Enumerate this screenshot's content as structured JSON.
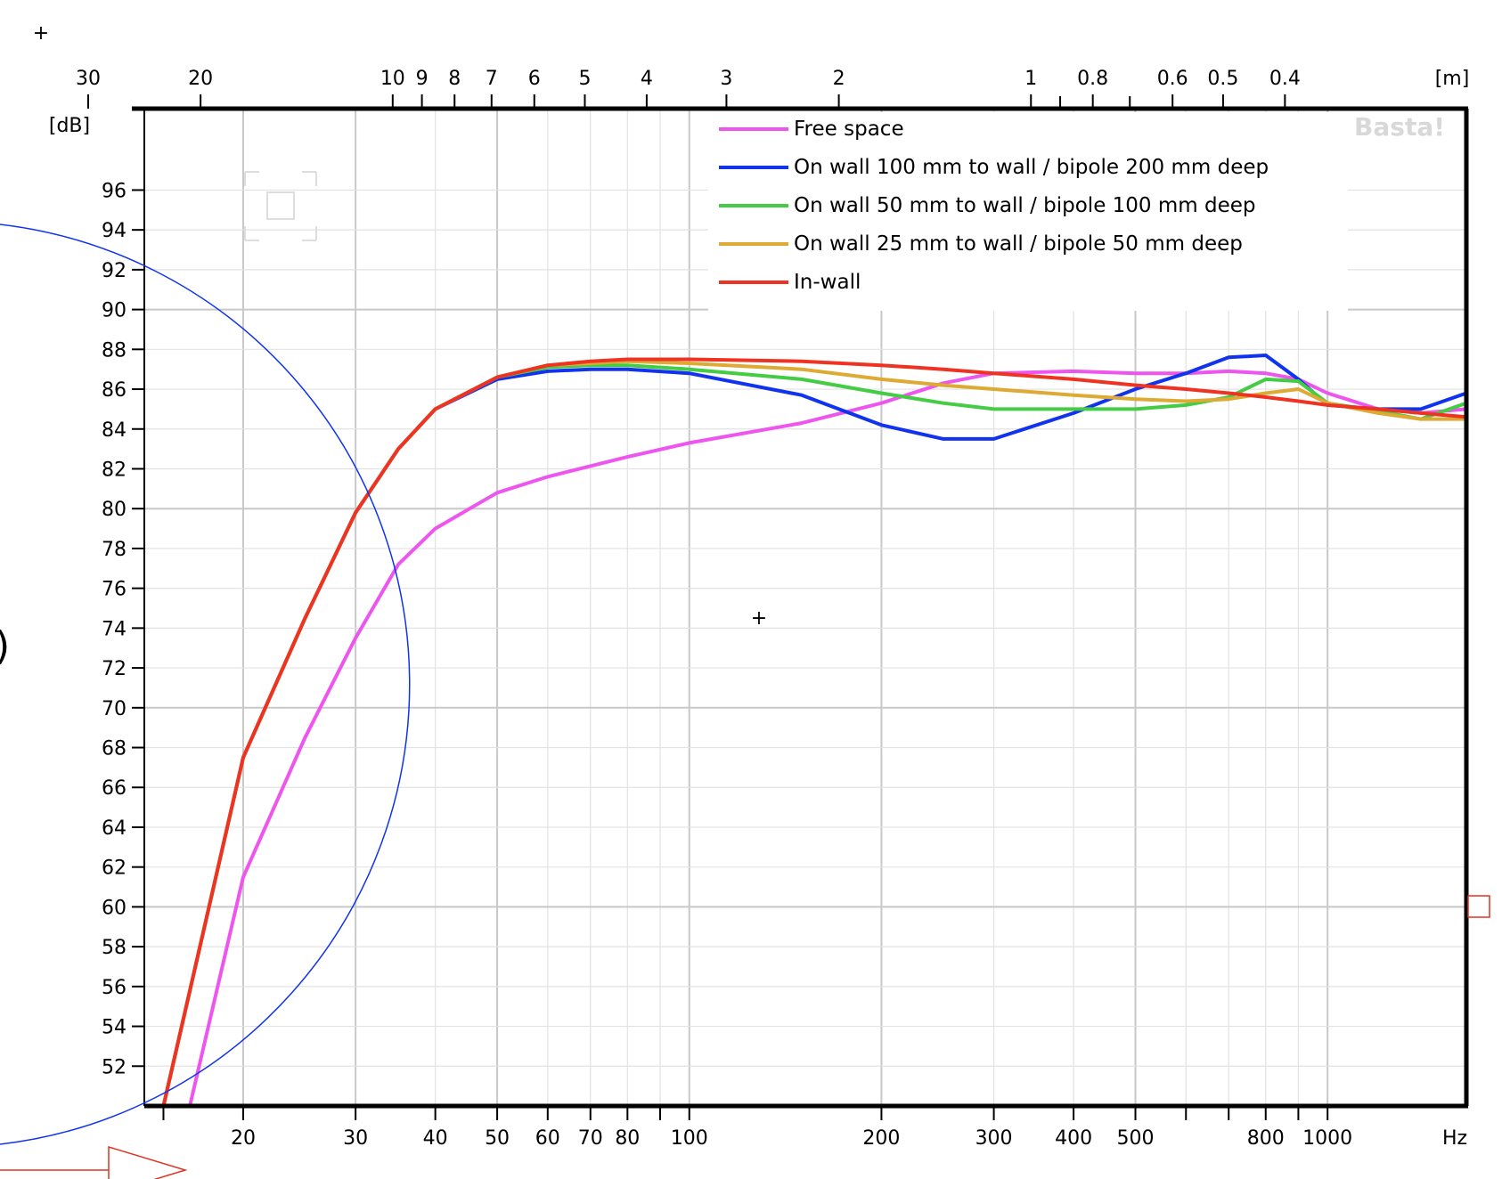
{
  "chart_data": {
    "type": "line",
    "watermark": "Basta!",
    "ylabel": "[dB]",
    "xlabel": "Hz",
    "top_axis_label": "[m]",
    "x_scale": "log",
    "xlim": [
      14,
      1650
    ],
    "ylim": [
      50,
      100
    ],
    "grid": true,
    "legend_position": "top-right",
    "y_ticks": [
      52,
      54,
      56,
      58,
      60,
      62,
      64,
      66,
      68,
      70,
      72,
      74,
      76,
      78,
      80,
      82,
      84,
      86,
      88,
      90,
      92,
      94,
      96
    ],
    "x_ticks_labeled": [
      {
        "value": 20,
        "label": "20"
      },
      {
        "value": 30,
        "label": "30"
      },
      {
        "value": 40,
        "label": "40"
      },
      {
        "value": 50,
        "label": "50"
      },
      {
        "value": 60,
        "label": "60"
      },
      {
        "value": 70,
        "label": "70"
      },
      {
        "value": 80,
        "label": "80"
      },
      {
        "value": 100,
        "label": "100"
      },
      {
        "value": 200,
        "label": "200"
      },
      {
        "value": 300,
        "label": "300"
      },
      {
        "value": 400,
        "label": "400"
      },
      {
        "value": 500,
        "label": "500"
      },
      {
        "value": 800,
        "label": "800"
      },
      {
        "value": 1000,
        "label": "1000"
      }
    ],
    "x_ticks_minor": [
      15,
      90,
      600,
      700,
      900
    ],
    "top_ticks": [
      {
        "value": 30,
        "label": "30"
      },
      {
        "value": 20,
        "label": "20"
      },
      {
        "value": 10,
        "label": "10"
      },
      {
        "value": 9,
        "label": "9"
      },
      {
        "value": 8,
        "label": "8"
      },
      {
        "value": 7,
        "label": "7"
      },
      {
        "value": 6,
        "label": "6"
      },
      {
        "value": 5,
        "label": "5"
      },
      {
        "value": 4,
        "label": "4"
      },
      {
        "value": 3,
        "label": "3"
      },
      {
        "value": 2,
        "label": "2"
      },
      {
        "value": 1,
        "label": "1"
      },
      {
        "value": 0.8,
        "label": "0.8"
      },
      {
        "value": 0.6,
        "label": "0.6"
      },
      {
        "value": 0.5,
        "label": "0.5"
      },
      {
        "value": 0.4,
        "label": "0.4"
      }
    ],
    "top_ticks_minor": [
      0.9,
      0.7
    ],
    "series": [
      {
        "name": "Free space",
        "color": "#ee55ee",
        "x": [
          14,
          16,
          16.5,
          20,
          25,
          30,
          35,
          40,
          50,
          60,
          80,
          100,
          150,
          200,
          250,
          300,
          400,
          500,
          600,
          700,
          800,
          900,
          1000,
          1200,
          1400,
          1650
        ],
        "y": [
          50,
          50,
          50,
          61.5,
          68.5,
          73.5,
          77.2,
          79,
          80.8,
          81.6,
          82.6,
          83.3,
          84.3,
          85.3,
          86.3,
          86.8,
          86.9,
          86.8,
          86.8,
          86.9,
          86.8,
          86.5,
          85.8,
          85.0,
          84.8,
          85.0
        ]
      },
      {
        "name": "On wall 100 mm to wall / bipole 200 mm deep",
        "color": "#1133ee",
        "x": [
          14,
          15,
          20,
          25,
          30,
          35,
          40,
          50,
          60,
          70,
          80,
          100,
          150,
          200,
          250,
          300,
          400,
          500,
          600,
          700,
          800,
          900,
          1000,
          1200,
          1400,
          1650
        ],
        "y": [
          50,
          50,
          67.5,
          74.5,
          79.8,
          83,
          85,
          86.5,
          86.9,
          87,
          87,
          86.8,
          85.7,
          84.2,
          83.5,
          83.5,
          84.8,
          86.0,
          86.8,
          87.6,
          87.7,
          86.5,
          85.2,
          85.0,
          85.0,
          85.8
        ]
      },
      {
        "name": "On wall 50 mm to wall / bipole 100 mm deep",
        "color": "#44cc44",
        "x": [
          14,
          15,
          20,
          25,
          30,
          35,
          40,
          50,
          60,
          70,
          80,
          100,
          150,
          200,
          250,
          300,
          400,
          500,
          600,
          700,
          800,
          900,
          1000,
          1200,
          1400,
          1650
        ],
        "y": [
          50,
          50,
          67.5,
          74.5,
          79.8,
          83,
          85,
          86.6,
          87.1,
          87.2,
          87.2,
          87.0,
          86.5,
          85.8,
          85.3,
          85.0,
          85.0,
          85.0,
          85.2,
          85.6,
          86.5,
          86.4,
          85.3,
          84.9,
          84.5,
          85.3
        ]
      },
      {
        "name": "On wall 25 mm to wall / bipole 50 mm deep",
        "color": "#ddaa33",
        "x": [
          14,
          15,
          20,
          25,
          30,
          35,
          40,
          50,
          60,
          70,
          80,
          100,
          150,
          200,
          250,
          300,
          400,
          500,
          600,
          700,
          800,
          900,
          1000,
          1200,
          1400,
          1650
        ],
        "y": [
          50,
          50,
          67.5,
          74.5,
          79.8,
          83,
          85,
          86.6,
          87.2,
          87.3,
          87.4,
          87.3,
          87.0,
          86.5,
          86.2,
          86.0,
          85.7,
          85.5,
          85.4,
          85.5,
          85.8,
          86.0,
          85.3,
          84.8,
          84.5,
          84.5
        ]
      },
      {
        "name": "In-wall",
        "color": "#ee3322",
        "x": [
          14,
          15,
          20,
          25,
          30,
          35,
          40,
          50,
          60,
          70,
          80,
          100,
          150,
          200,
          250,
          300,
          400,
          500,
          600,
          700,
          800,
          900,
          1000,
          1200,
          1400,
          1650
        ],
        "y": [
          50,
          50,
          67.5,
          74.5,
          79.8,
          83,
          85,
          86.6,
          87.2,
          87.4,
          87.5,
          87.5,
          87.4,
          87.2,
          87.0,
          86.8,
          86.5,
          86.2,
          86.0,
          85.8,
          85.6,
          85.4,
          85.2,
          85.0,
          84.8,
          84.6
        ]
      }
    ]
  },
  "overlay": {
    "ellipse_color": "#1133ee",
    "arrow_color": "#dd3322",
    "marker_color": "#dd3322",
    "paren_glyph": ")",
    "crosshair_glyph": "+"
  }
}
